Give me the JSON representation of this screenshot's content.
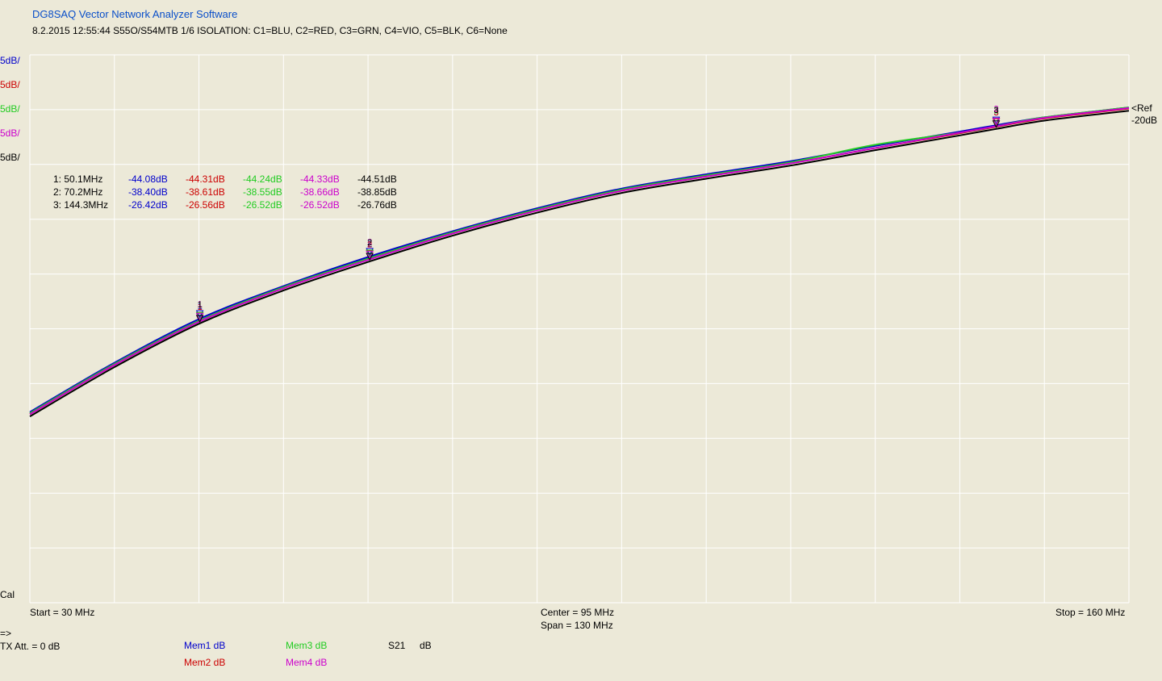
{
  "header": {
    "app_title": "DG8SAQ Vector Network Analyzer Software",
    "subtitle": "8.2.2015   12:55:44   S55O/S54MTB  1/6 ISOLATION:  C1=BLU,  C2=RED,  C3=GRN,  C4=VIO,  C5=BLK,  C6=None"
  },
  "scales": [
    {
      "label": "5dB/",
      "color": "#0000cc"
    },
    {
      "label": "5dB/",
      "color": "#cc0000"
    },
    {
      "label": "5dB/",
      "color": "#22cc22"
    },
    {
      "label": "5dB/",
      "color": "#cc00cc"
    },
    {
      "label": "5dB/",
      "color": "#000000"
    }
  ],
  "ref": {
    "label": "<Ref",
    "value": "-20dB"
  },
  "cal_label": "Cal",
  "markers": [
    {
      "label": "1:  50.1MHz",
      "values": [
        "-44.08dB",
        "-44.31dB",
        "-44.24dB",
        "-44.33dB",
        "-44.51dB"
      ]
    },
    {
      "label": "2:  70.2MHz",
      "values": [
        "-38.40dB",
        "-38.61dB",
        "-38.55dB",
        "-38.66dB",
        "-38.85dB"
      ]
    },
    {
      "label": "3:  144.3MHz",
      "values": [
        "-26.42dB",
        "-26.56dB",
        "-26.52dB",
        "-26.52dB",
        "-26.76dB"
      ]
    }
  ],
  "x_axis": {
    "start": "Start = 30 MHz",
    "center": "Center = 95 MHz",
    "span": "Span = 130 MHz",
    "stop": "Stop = 160 MHz"
  },
  "footer": {
    "prompt": "=>",
    "tx_att": "TX Att.  = 0 dB",
    "mem1": "Mem1 dB",
    "mem2": "Mem2 dB",
    "mem3": "Mem3 dB",
    "mem4": "Mem4 dB",
    "param": "S21",
    "unit": "dB"
  },
  "colors": {
    "background": "#ece9d8",
    "plot": "#ece9d8",
    "grid": "#ffffff",
    "c1": "#0000cc",
    "c2": "#cc0000",
    "c3": "#22cc22",
    "c4": "#cc00cc",
    "c5": "#000000",
    "title": "#0a4fc9"
  },
  "chart_data": {
    "type": "line",
    "x_unit": "MHz",
    "xlim": [
      30,
      160
    ],
    "y_unit": "dB",
    "ylim": [
      -70,
      -20
    ],
    "y_div": 5,
    "ref_level": -20,
    "grid": true,
    "x": [
      30,
      40,
      50.1,
      60,
      70.2,
      80,
      90,
      100,
      110,
      120,
      130,
      140,
      144.3,
      150,
      160
    ],
    "series": [
      {
        "name": "C1=BLU",
        "color": "#0000cc",
        "values": [
          -52.6,
          -48.1,
          -44.08,
          -41.1,
          -38.4,
          -36.1,
          -34.0,
          -32.2,
          -30.9,
          -29.7,
          -28.3,
          -27.0,
          -26.42,
          -25.7,
          -24.8
        ]
      },
      {
        "name": "C2=RED",
        "color": "#cc0000",
        "values": [
          -52.8,
          -48.3,
          -44.31,
          -41.3,
          -38.61,
          -36.3,
          -34.2,
          -32.4,
          -31.1,
          -29.9,
          -28.5,
          -27.15,
          -26.56,
          -25.8,
          -24.9
        ]
      },
      {
        "name": "C3=GRN",
        "color": "#22cc22",
        "values": [
          -52.7,
          -48.2,
          -44.24,
          -41.2,
          -38.55,
          -36.2,
          -34.1,
          -32.3,
          -31.0,
          -29.8,
          -28.2,
          -27.1,
          -26.52,
          -25.7,
          -24.8
        ]
      },
      {
        "name": "C4=VIO",
        "color": "#cc00cc",
        "values": [
          -52.8,
          -48.3,
          -44.33,
          -41.3,
          -38.66,
          -36.3,
          -34.2,
          -32.4,
          -31.1,
          -29.9,
          -28.5,
          -27.1,
          -26.52,
          -25.75,
          -24.85
        ]
      },
      {
        "name": "C5=BLK",
        "color": "#000000",
        "values": [
          -53.0,
          -48.5,
          -44.51,
          -41.5,
          -38.85,
          -36.5,
          -34.4,
          -32.6,
          -31.3,
          -30.1,
          -28.7,
          -27.35,
          -26.76,
          -26.0,
          -25.1
        ]
      }
    ],
    "marker_points": [
      {
        "id": "1",
        "x": 50.1
      },
      {
        "id": "2",
        "x": 70.2
      },
      {
        "id": "3",
        "x": 144.3
      }
    ]
  }
}
